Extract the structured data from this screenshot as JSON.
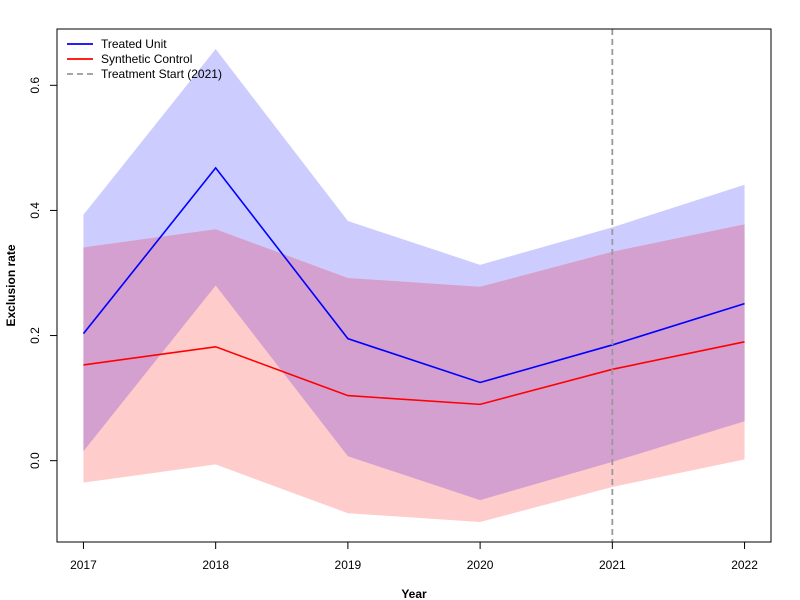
{
  "chart_data": {
    "type": "line",
    "xlabel": "Year",
    "ylabel": "Exclusion rate",
    "x": [
      2017,
      2018,
      2019,
      2020,
      2021,
      2022
    ],
    "x_ticks": [
      "2017",
      "2018",
      "2019",
      "2020",
      "2021",
      "2022"
    ],
    "y_ticks": [
      0.0,
      0.2,
      0.4,
      0.6
    ],
    "y_tick_labels": [
      "0.0",
      "0.2",
      "0.4",
      "0.6"
    ],
    "xlim": [
      2016.8,
      2022.2
    ],
    "ylim": [
      -0.13,
      0.69
    ],
    "grid": false,
    "legend_position": "top-left",
    "series": [
      {
        "name": "Treated Unit",
        "color": "#0000ff",
        "band_color": "#ccccff",
        "values": [
          0.203,
          0.468,
          0.195,
          0.125,
          0.185,
          0.251
        ],
        "lower": [
          0.015,
          0.28,
          0.007,
          -0.063,
          -0.002,
          0.063
        ],
        "upper": [
          0.393,
          0.658,
          0.383,
          0.313,
          0.373,
          0.441
        ]
      },
      {
        "name": "Synthetic Control",
        "color": "#ff0000",
        "band_color": "#ffcccc",
        "values": [
          0.153,
          0.182,
          0.104,
          0.09,
          0.146,
          0.19
        ],
        "lower": [
          -0.035,
          -0.006,
          -0.084,
          -0.098,
          -0.042,
          0.002
        ],
        "upper": [
          0.341,
          0.37,
          0.292,
          0.278,
          0.334,
          0.378
        ]
      }
    ],
    "overlap_color": "#d4a0d0",
    "reference_line": {
      "x": 2021,
      "label": "Treatment Start (2021)",
      "color": "#999999",
      "style": "dashed"
    }
  }
}
